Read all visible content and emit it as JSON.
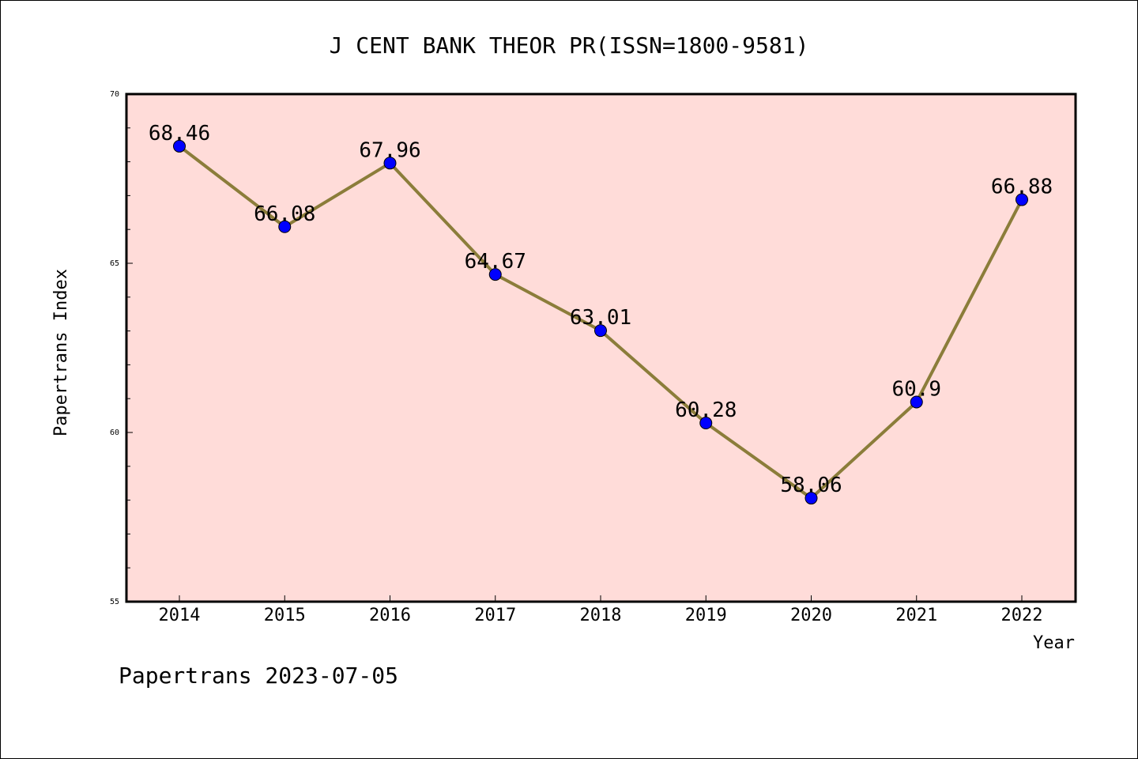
{
  "chart_data": {
    "type": "line",
    "title": "J CENT BANK THEOR PR(ISSN=1800-9581)",
    "xlabel": "Year",
    "ylabel": "Papertrans Index",
    "categories": [
      "2014",
      "2015",
      "2016",
      "2017",
      "2018",
      "2019",
      "2020",
      "2021",
      "2022"
    ],
    "series": [
      {
        "values": [
          68.46,
          66.08,
          67.96,
          64.67,
          63.01,
          60.28,
          58.06,
          60.9,
          66.88
        ],
        "labels": [
          "68.46",
          "66.08",
          "67.96",
          "64.67",
          "63.01",
          "60.28",
          "58.06",
          "60.9",
          "66.88"
        ],
        "line_color": "#8b7d3a",
        "marker_color": "#0000ff"
      }
    ],
    "ylim": [
      55,
      70
    ],
    "yticks": [
      "55",
      "60",
      "65",
      "70"
    ],
    "grid": false,
    "plot_background": "#ffdcd9",
    "footer": "Papertrans 2023-07-05"
  }
}
